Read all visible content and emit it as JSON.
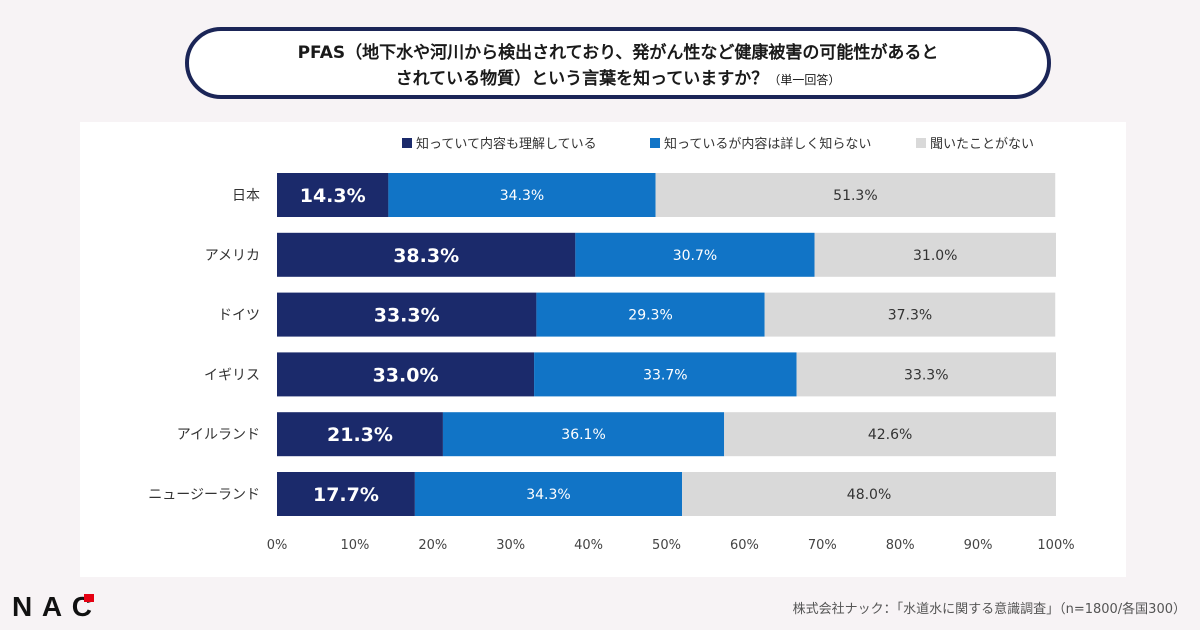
{
  "title": {
    "main_line1": "PFAS（地下水や河川から検出されており、発がん性など健康被害の可能性があると",
    "main_line2": "されている物質）という言葉を知っていますか？",
    "note": "（単一回答）"
  },
  "chart_data": {
    "type": "bar",
    "orientation": "horizontal",
    "stacked": true,
    "categories": [
      "日本",
      "アメリカ",
      "ドイツ",
      "イギリス",
      "アイルランド",
      "ニュージーランド"
    ],
    "series": [
      {
        "name": "知っていて内容も理解している",
        "color": "#1b2a6b",
        "values": [
          14.3,
          38.3,
          33.3,
          33.0,
          21.3,
          17.7
        ]
      },
      {
        "name": "知っているが内容は詳しく知らない",
        "color": "#1174c6",
        "values": [
          34.3,
          30.7,
          29.3,
          33.7,
          36.1,
          34.3
        ]
      },
      {
        "name": "聞いたことがない",
        "color": "#d9d9d9",
        "values": [
          51.3,
          31.0,
          37.3,
          33.3,
          42.6,
          48.0
        ]
      }
    ],
    "xlim": [
      0,
      100
    ],
    "xticks": [
      "0%",
      "10%",
      "20%",
      "30%",
      "40%",
      "50%",
      "60%",
      "70%",
      "80%",
      "90%",
      "100%"
    ],
    "legend_position": "top-right",
    "grid": false
  },
  "footer": {
    "source": "株式会社ナック：「水道水に関する意識調査」（n=1800/各国300）"
  },
  "logo": {
    "text": "NAC"
  }
}
